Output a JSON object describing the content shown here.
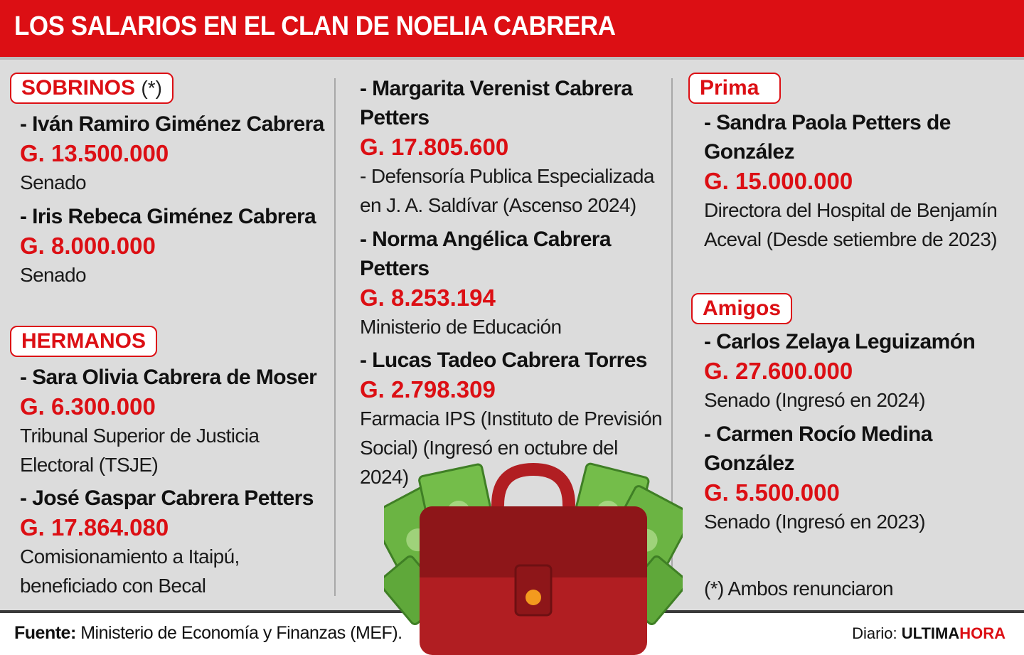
{
  "title": "LOS SALARIOS EN EL CLAN DE NOELIA CABRERA",
  "colors": {
    "accent": "#dc0f14",
    "panel": "#dcdcdc",
    "money": "#6bb443",
    "case": "#b11e22"
  },
  "col1": {
    "sobrinos_label": "SOBRINOS",
    "sobrinos_mark": "(*)",
    "sobrinos": [
      {
        "name": "- Iván Ramiro Giménez Cabrera",
        "amount": "G. 13.500.000",
        "place": "Senado"
      },
      {
        "name": "- Iris Rebeca Giménez Cabrera",
        "amount": "G. 8.000.000",
        "place": "Senado"
      }
    ],
    "hermanos_label": "HERMANOS",
    "hermanos": [
      {
        "name": "- Sara Olivia Cabrera de Moser",
        "amount": "G. 6.300.000",
        "place1": "Tribunal Superior de Justicia",
        "place2": "Electoral  (TSJE)"
      },
      {
        "name": "- José Gaspar Cabrera Petters",
        "amount": "G. 17.864.080",
        "place1": "Comisionamiento a Itaipú,",
        "place2": "beneficiado con Becal"
      }
    ]
  },
  "col2": [
    {
      "name1": "- Margarita Verenist Cabrera",
      "name2": "Petters",
      "amount": "G. 17.805.600",
      "place1": "- Defensoría Publica Especializada",
      "place2": "en J. A. Saldívar (Ascenso 2024)"
    },
    {
      "name1": "- Norma Angélica Cabrera",
      "name2": "Petters",
      "amount": "G. 8.253.194",
      "place1": "Ministerio de Educación"
    },
    {
      "name1": "- Lucas Tadeo Cabrera Torres",
      "amount": "G. 2.798.309",
      "place1": "Farmacia IPS (Instituto de Previsión",
      "place2": "Social) (Ingresó en octubre del",
      "place3": "2024)"
    }
  ],
  "col3": {
    "prima_label": "Prima",
    "prima": {
      "name1": "- Sandra Paola Petters de",
      "name2": "González",
      "amount": "G. 15.000.000",
      "place1": "Directora del Hospital de Benjamín",
      "place2": "Aceval (Desde setiembre de 2023)"
    },
    "amigos_label": "Amigos",
    "amigos": [
      {
        "name1": "- Carlos Zelaya Leguizamón",
        "amount": "G. 27.600.000",
        "place1": "Senado (Ingresó en 2024)"
      },
      {
        "name1": "- Carmen Rocío Medina",
        "name2": "González",
        "amount": "G. 5.500.000",
        "place1": "Senado (Ingresó en 2023)"
      }
    ],
    "note": "(*) Ambos renunciaron"
  },
  "footer": {
    "source_label": "Fuente:",
    "source_text": " Ministerio de Economía y Finanzas (MEF).",
    "brand_prefix": "Diario: ",
    "brand_a": "ULTIMA",
    "brand_b": "HORA"
  },
  "illustration": {
    "icon": "briefcase-with-money-icon"
  }
}
